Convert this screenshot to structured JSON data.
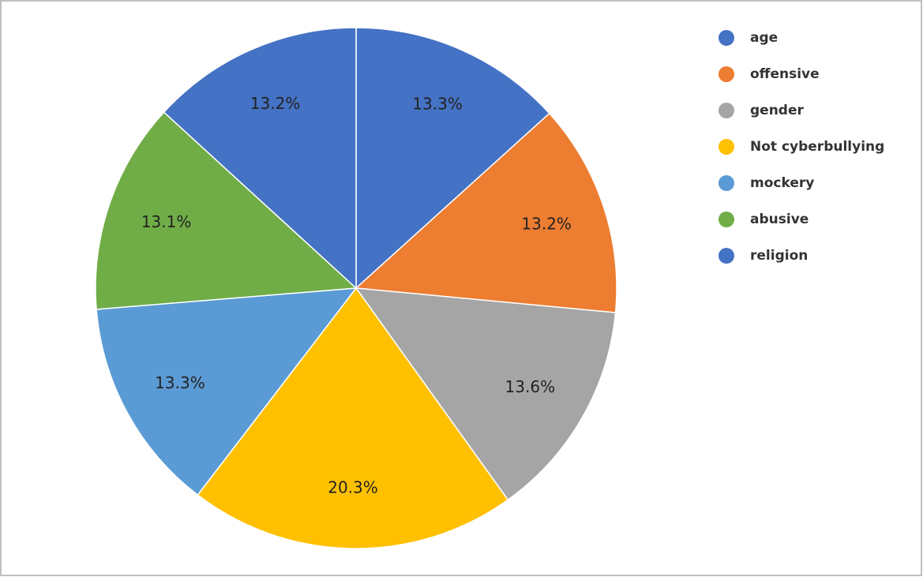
{
  "chart_data": {
    "type": "pie",
    "categories": [
      "age",
      "offensive",
      "gender",
      "Not cyberbullying",
      "mockery",
      "abusive",
      "religion"
    ],
    "values": [
      13.3,
      13.2,
      13.6,
      20.3,
      13.3,
      13.1,
      13.2
    ],
    "value_labels": [
      "13.3%",
      "13.2%",
      "13.6%",
      "20.3%",
      "13.3%",
      "13.1%",
      "13.2%"
    ],
    "colors": [
      "#4472c4",
      "#ed7d31",
      "#a5a5a5",
      "#ffc000",
      "#5b9bd5",
      "#70ad47",
      "#4472c4"
    ],
    "legend": "right"
  }
}
